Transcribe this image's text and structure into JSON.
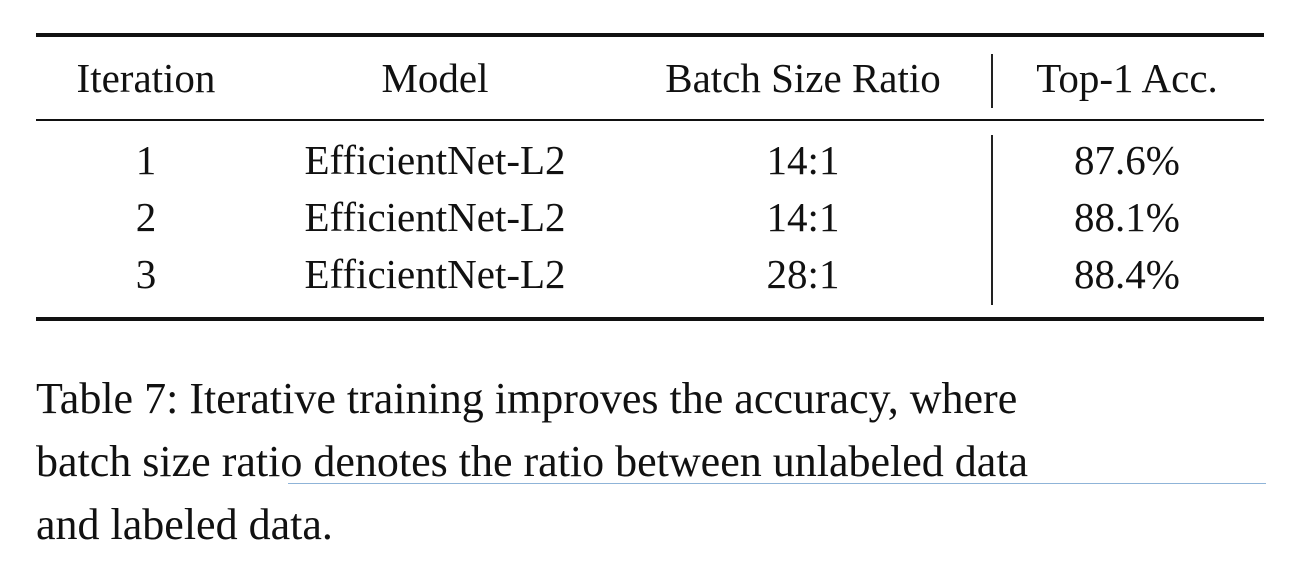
{
  "table": {
    "headers": [
      "Iteration",
      "Model",
      "Batch Size Ratio",
      "Top-1 Acc."
    ],
    "rows": [
      [
        "1",
        "EfficientNet-L2",
        "14:1",
        "87.6%"
      ],
      [
        "2",
        "EfficientNet-L2",
        "14:1",
        "88.1%"
      ],
      [
        "3",
        "EfficientNet-L2",
        "28:1",
        "88.4%"
      ]
    ]
  },
  "caption": {
    "line1": [
      "Table",
      "7:",
      "Iterative",
      "training",
      "improves",
      "the",
      "accuracy,",
      "where"
    ],
    "line2": [
      "batch",
      "size",
      "ratio",
      "denotes",
      "the",
      "ratio",
      "between",
      "unlabeled",
      "data"
    ],
    "line3": "and labeled data."
  }
}
